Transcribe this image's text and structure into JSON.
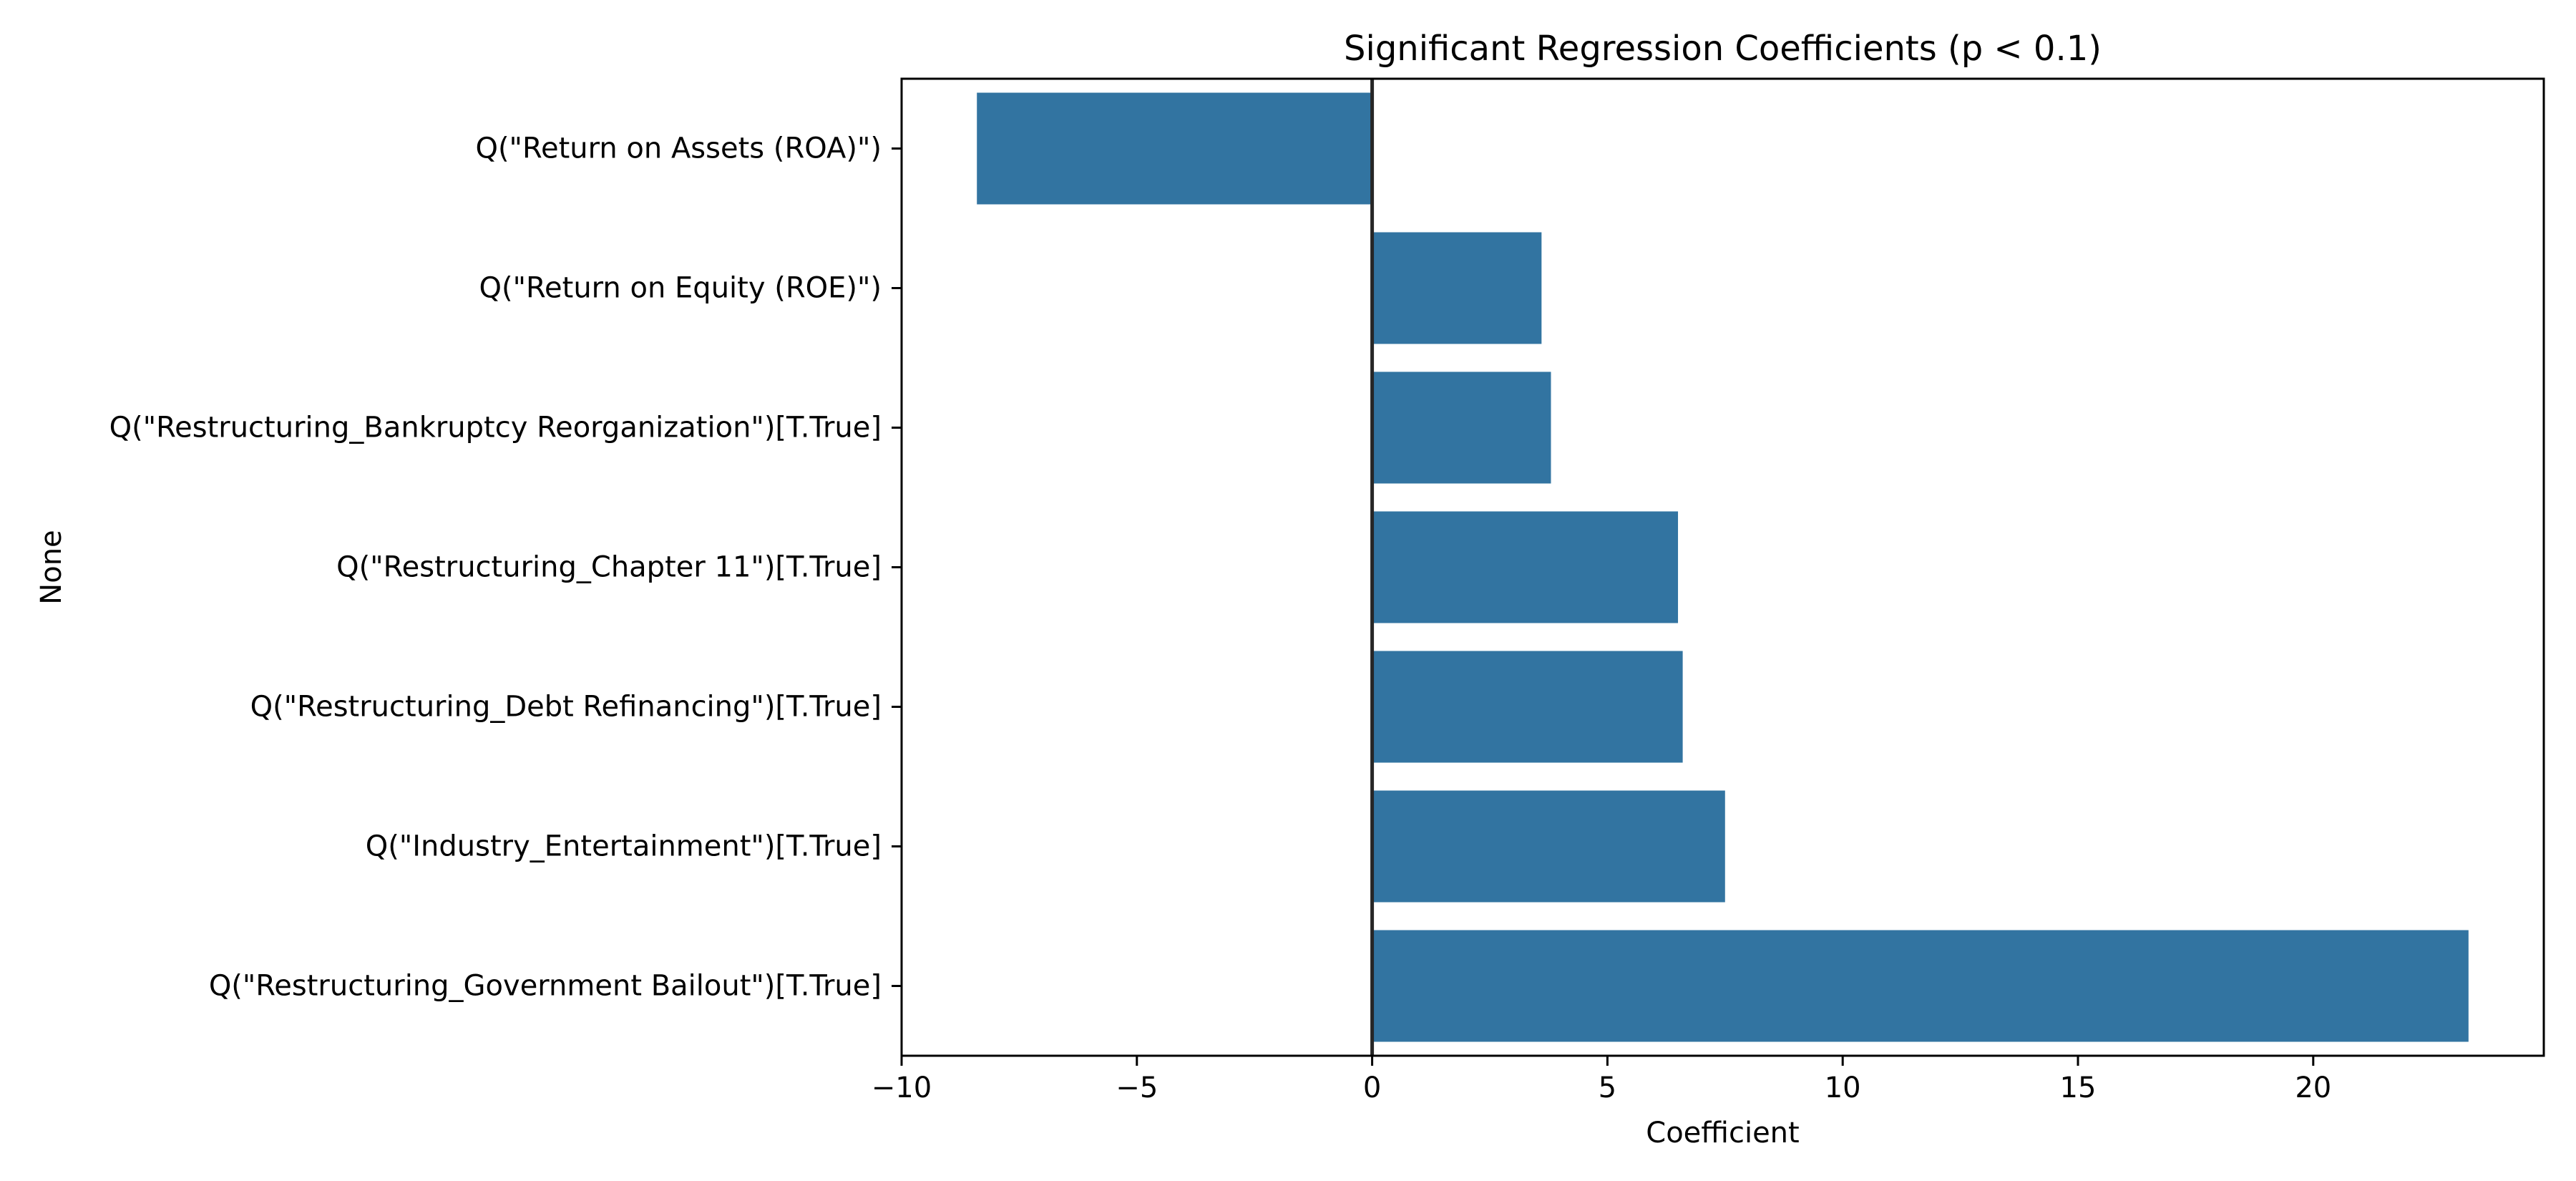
{
  "chart_data": {
    "type": "bar",
    "orientation": "horizontal",
    "title": "Significant Regression Coefficients (p < 0.1)",
    "xlabel": "Coefficient",
    "ylabel": "None",
    "xlim": [
      -10,
      24.9
    ],
    "xticks": [
      -10,
      -5,
      0,
      5,
      10,
      15,
      20
    ],
    "xtick_labels": [
      "−10",
      "−5",
      "0",
      "5",
      "10",
      "15",
      "20"
    ],
    "grid": false,
    "legend": "none",
    "reference_line": 0,
    "bar_color": "#3274a1",
    "reference_line_color": "#262626",
    "categories": [
      "Q(\"Return on Assets (ROA)\")",
      "Q(\"Return on Equity (ROE)\")",
      "Q(\"Restructuring_Bankruptcy Reorganization\")[T.True]",
      "Q(\"Restructuring_Chapter 11\")[T.True]",
      "Q(\"Restructuring_Debt Refinancing\")[T.True]",
      "Q(\"Industry_Entertainment\")[T.True]",
      "Q(\"Restructuring_Government Bailout\")[T.True]"
    ],
    "values": [
      -8.4,
      3.6,
      3.8,
      6.5,
      6.6,
      7.5,
      23.3
    ]
  }
}
